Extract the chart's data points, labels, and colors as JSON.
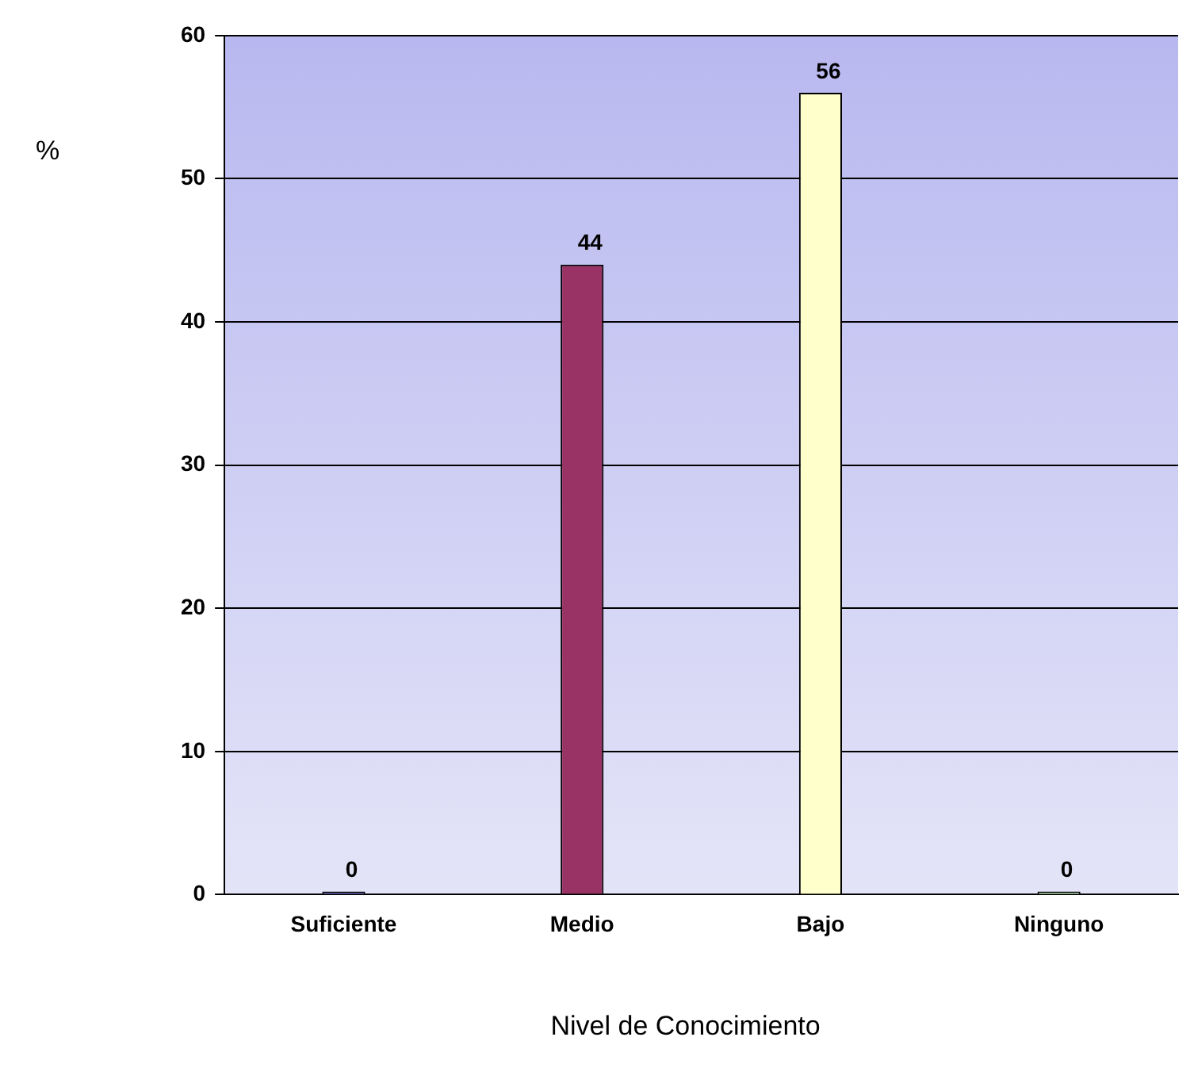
{
  "chart_data": {
    "type": "bar",
    "xlabel": "Nivel de Conocimiento",
    "ylabel": "%",
    "categories": [
      "Suficiente",
      "Medio",
      "Bajo",
      "Ninguno"
    ],
    "values": [
      0,
      44,
      56,
      0
    ],
    "colors": [
      "#7777cc",
      "#993366",
      "#ffffcc",
      "#ccffcc"
    ],
    "ylim": [
      0,
      60
    ],
    "yticks": [
      0,
      10,
      20,
      30,
      40,
      50,
      60
    ],
    "grid": "y",
    "data_labels": true,
    "legend": false
  }
}
